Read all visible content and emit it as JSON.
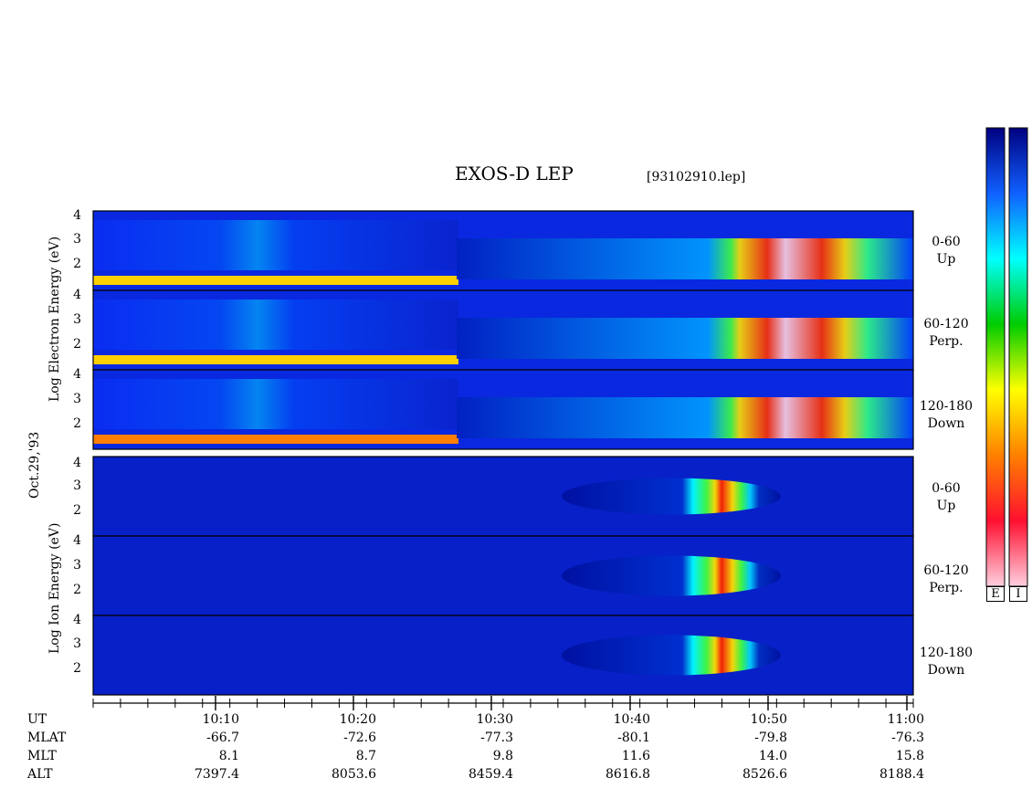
{
  "chart_data": {
    "type": "heatmap",
    "title": "EXOS-D LEP",
    "subtitle": "[93102910.lep]",
    "date_label": "Oct.29,'93",
    "groups": [
      {
        "name": "Electron",
        "ylabel": "Log   Electron   Energy (eV)",
        "panels": [
          {
            "name": "0-60",
            "sub": "Up",
            "yticks": [
              "4",
              "3",
              "2"
            ]
          },
          {
            "name": "60-120",
            "sub": "Perp.",
            "yticks": [
              "4",
              "3",
              "2"
            ]
          },
          {
            "name": "120-180",
            "sub": "Down",
            "yticks": [
              "4",
              "3",
              "2"
            ]
          }
        ]
      },
      {
        "name": "Ion",
        "ylabel": "Log   Ion   Energy (eV)",
        "panels": [
          {
            "name": "0-60",
            "sub": "Up",
            "yticks": [
              "4",
              "3",
              "2"
            ]
          },
          {
            "name": "60-120",
            "sub": "Perp.",
            "yticks": [
              "4",
              "3",
              "2"
            ]
          },
          {
            "name": "120-180",
            "sub": "Down",
            "yticks": [
              "4",
              "3",
              "2"
            ]
          }
        ]
      }
    ],
    "xaxis": {
      "start": "10:01",
      "end": "11:01",
      "tick_labels": [
        "10:10",
        "10:20",
        "10:30",
        "10:40",
        "10:50",
        "11:00"
      ]
    },
    "ephemeris": [
      {
        "label": "UT",
        "values": [
          "10:10",
          "10:20",
          "10:30",
          "10:40",
          "10:50",
          "11:00"
        ]
      },
      {
        "label": "MLAT",
        "values": [
          "-66.7",
          "-72.6",
          "-77.3",
          "-80.1",
          "-79.8",
          "-76.3"
        ]
      },
      {
        "label": "MLT",
        "values": [
          "8.1",
          "8.7",
          "9.8",
          "11.6",
          "14.0",
          "15.8"
        ]
      },
      {
        "label": "ALT",
        "values": [
          "7397.4",
          "8053.6",
          "8459.4",
          "8616.8",
          "8526.6",
          "8188.4"
        ]
      }
    ],
    "colorbars": [
      {
        "label": "E"
      },
      {
        "label": "I"
      }
    ],
    "colors": {
      "background": "#0a1fc8",
      "colorscale": [
        "#ffd0e0",
        "#ff1030",
        "#ff8000",
        "#ffff00",
        "#00cc00",
        "#00ffff",
        "#1060ff",
        "#000080"
      ]
    }
  }
}
